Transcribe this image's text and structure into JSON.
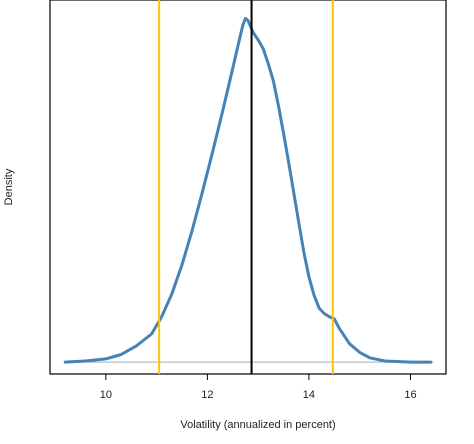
{
  "chart_data": {
    "type": "line",
    "title": "",
    "xlabel": "Volatility (annualized in percent)",
    "ylabel": "Density",
    "xlim": [
      8.9,
      16.7
    ],
    "ylim": [
      -0.011,
      0.335
    ],
    "xticks": [
      10,
      12,
      14,
      16
    ],
    "grid": false,
    "y_tick_labels_shown": false,
    "baseline": {
      "y": 0,
      "color": "#bebebe"
    },
    "density_curve": {
      "color": "#4682b4",
      "points": [
        [
          9.2,
          0.0
        ],
        [
          9.6,
          0.001
        ],
        [
          10.0,
          0.003
        ],
        [
          10.3,
          0.007
        ],
        [
          10.6,
          0.015
        ],
        [
          10.9,
          0.026
        ],
        [
          11.1,
          0.042
        ],
        [
          11.3,
          0.063
        ],
        [
          11.5,
          0.09
        ],
        [
          11.7,
          0.122
        ],
        [
          11.9,
          0.157
        ],
        [
          12.1,
          0.194
        ],
        [
          12.3,
          0.232
        ],
        [
          12.5,
          0.272
        ],
        [
          12.6,
          0.292
        ],
        [
          12.7,
          0.312
        ],
        [
          12.75,
          0.318
        ],
        [
          12.8,
          0.316
        ],
        [
          12.9,
          0.305
        ],
        [
          13.0,
          0.298
        ],
        [
          13.1,
          0.29
        ],
        [
          13.2,
          0.276
        ],
        [
          13.3,
          0.26
        ],
        [
          13.4,
          0.237
        ],
        [
          13.5,
          0.212
        ],
        [
          13.6,
          0.185
        ],
        [
          13.7,
          0.157
        ],
        [
          13.8,
          0.129
        ],
        [
          13.9,
          0.102
        ],
        [
          14.0,
          0.079
        ],
        [
          14.1,
          0.062
        ],
        [
          14.2,
          0.05
        ],
        [
          14.3,
          0.045
        ],
        [
          14.4,
          0.042
        ],
        [
          14.5,
          0.04
        ],
        [
          14.6,
          0.031
        ],
        [
          14.7,
          0.024
        ],
        [
          14.8,
          0.017
        ],
        [
          15.0,
          0.009
        ],
        [
          15.2,
          0.004
        ],
        [
          15.5,
          0.001
        ],
        [
          16.0,
          0.0
        ],
        [
          16.4,
          0.0
        ]
      ]
    },
    "vertical_lines": [
      {
        "name": "lower-quantile",
        "x": 11.05,
        "color": "#ffc400"
      },
      {
        "name": "center",
        "x": 12.87,
        "color": "#000000"
      },
      {
        "name": "upper-quantile",
        "x": 14.47,
        "color": "#ffc400"
      }
    ]
  }
}
